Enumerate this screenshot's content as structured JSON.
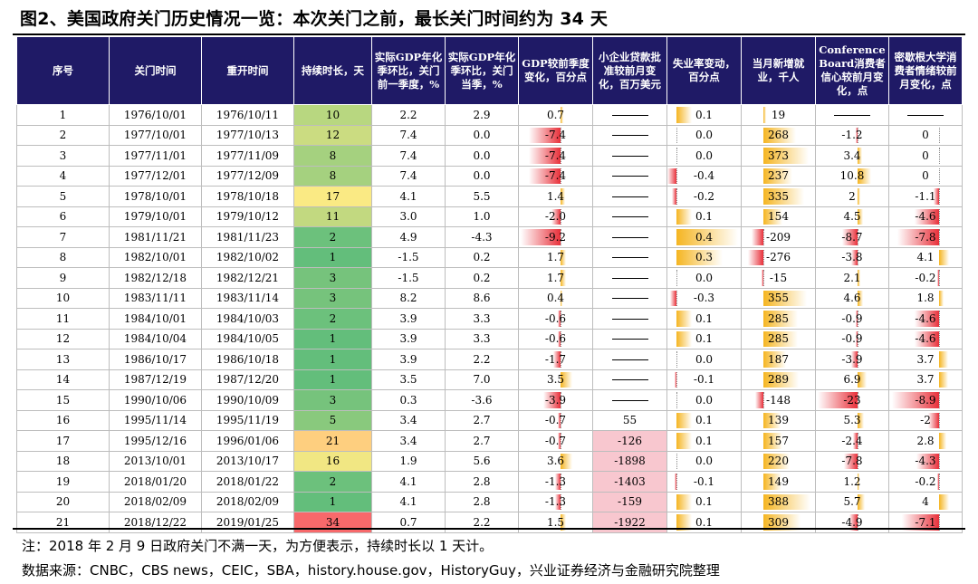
{
  "title": "图2、美国政府关门历史情况一览：本次关门之前，最长关门时间约为 34 天",
  "headers": [
    "序号",
    "关门时间",
    "重开时间",
    "持续时长，天",
    "实际GDP年化季环比，关门前一季度，%",
    "实际GDP年化季环比，关门当季，%",
    "GDP较前季度变化，百分点",
    "小企业贷款批准较前月变化，百万美元",
    "失业率变动，百分点",
    "当月新增就业，千人",
    "Conference Board消费者信心较前月变化，点",
    "密歇根大学消费者情绪较前月变化，点"
  ],
  "rows": [
    {
      "no": "1",
      "close": "1976/10/01",
      "reopen": "1976/10/11",
      "dur": "10",
      "gdp_prev": "2.2",
      "gdp_curr": "2.9",
      "gdp_chg": "0.7",
      "sba": "",
      "unemp": "0.1",
      "jobs": "19",
      "cb": "",
      "mich": ""
    },
    {
      "no": "2",
      "close": "1977/10/01",
      "reopen": "1977/10/13",
      "dur": "12",
      "gdp_prev": "7.4",
      "gdp_curr": "0.0",
      "gdp_chg": "-7.4",
      "sba": "",
      "unemp": "0.0",
      "jobs": "268",
      "cb": "-1.2",
      "mich": "0"
    },
    {
      "no": "3",
      "close": "1977/11/01",
      "reopen": "1977/11/09",
      "dur": "8",
      "gdp_prev": "7.4",
      "gdp_curr": "0.0",
      "gdp_chg": "-7.4",
      "sba": "",
      "unemp": "0.0",
      "jobs": "373",
      "cb": "3.4",
      "mich": "0"
    },
    {
      "no": "4",
      "close": "1977/12/01",
      "reopen": "1977/12/09",
      "dur": "8",
      "gdp_prev": "7.4",
      "gdp_curr": "0.0",
      "gdp_chg": "-7.4",
      "sba": "",
      "unemp": "-0.4",
      "jobs": "237",
      "cb": "10.8",
      "mich": "0"
    },
    {
      "no": "5",
      "close": "1978/10/01",
      "reopen": "1978/10/18",
      "dur": "17",
      "gdp_prev": "4.1",
      "gdp_curr": "5.5",
      "gdp_chg": "1.4",
      "sba": "",
      "unemp": "-0.2",
      "jobs": "335",
      "cb": "2",
      "mich": "-1.1"
    },
    {
      "no": "6",
      "close": "1979/10/01",
      "reopen": "1979/10/12",
      "dur": "11",
      "gdp_prev": "3.0",
      "gdp_curr": "1.0",
      "gdp_chg": "-2.0",
      "sba": "",
      "unemp": "0.1",
      "jobs": "154",
      "cb": "4.5",
      "mich": "-4.6"
    },
    {
      "no": "7",
      "close": "1981/11/21",
      "reopen": "1981/11/23",
      "dur": "2",
      "gdp_prev": "4.9",
      "gdp_curr": "-4.3",
      "gdp_chg": "-9.2",
      "sba": "",
      "unemp": "0.4",
      "jobs": "-209",
      "cb": "-8.7",
      "mich": "-7.8"
    },
    {
      "no": "8",
      "close": "1982/10/01",
      "reopen": "1982/10/02",
      "dur": "1",
      "gdp_prev": "-1.5",
      "gdp_curr": "0.2",
      "gdp_chg": "1.7",
      "sba": "",
      "unemp": "0.3",
      "jobs": "-276",
      "cb": "-3.8",
      "mich": "4.1"
    },
    {
      "no": "9",
      "close": "1982/12/18",
      "reopen": "1982/12/21",
      "dur": "3",
      "gdp_prev": "-1.5",
      "gdp_curr": "0.2",
      "gdp_chg": "1.7",
      "sba": "",
      "unemp": "0.0",
      "jobs": "-15",
      "cb": "2.1",
      "mich": "-0.2"
    },
    {
      "no": "10",
      "close": "1983/11/11",
      "reopen": "1983/11/14",
      "dur": "3",
      "gdp_prev": "8.2",
      "gdp_curr": "8.6",
      "gdp_chg": "0.4",
      "sba": "",
      "unemp": "-0.3",
      "jobs": "355",
      "cb": "4.6",
      "mich": "1.8"
    },
    {
      "no": "11",
      "close": "1984/10/01",
      "reopen": "1984/10/03",
      "dur": "2",
      "gdp_prev": "3.9",
      "gdp_curr": "3.3",
      "gdp_chg": "-0.6",
      "sba": "",
      "unemp": "0.1",
      "jobs": "285",
      "cb": "-0.9",
      "mich": "-4.6"
    },
    {
      "no": "12",
      "close": "1984/10/04",
      "reopen": "1984/10/05",
      "dur": "1",
      "gdp_prev": "3.9",
      "gdp_curr": "3.3",
      "gdp_chg": "-0.6",
      "sba": "",
      "unemp": "0.1",
      "jobs": "285",
      "cb": "-0.9",
      "mich": "-4.6"
    },
    {
      "no": "13",
      "close": "1986/10/17",
      "reopen": "1986/10/18",
      "dur": "1",
      "gdp_prev": "3.9",
      "gdp_curr": "2.2",
      "gdp_chg": "-1.7",
      "sba": "",
      "unemp": "0.0",
      "jobs": "187",
      "cb": "-3.9",
      "mich": "3.7"
    },
    {
      "no": "14",
      "close": "1987/12/19",
      "reopen": "1987/12/20",
      "dur": "1",
      "gdp_prev": "3.5",
      "gdp_curr": "7.0",
      "gdp_chg": "3.5",
      "sba": "",
      "unemp": "-0.1",
      "jobs": "289",
      "cb": "6.9",
      "mich": "3.7"
    },
    {
      "no": "15",
      "close": "1990/10/06",
      "reopen": "1990/10/09",
      "dur": "3",
      "gdp_prev": "0.3",
      "gdp_curr": "-3.6",
      "gdp_chg": "-3.9",
      "sba": "",
      "unemp": "0.0",
      "jobs": "-148",
      "cb": "-23",
      "mich": "-8.9"
    },
    {
      "no": "16",
      "close": "1995/11/14",
      "reopen": "1995/11/19",
      "dur": "5",
      "gdp_prev": "3.4",
      "gdp_curr": "2.7",
      "gdp_chg": "-0.7",
      "sba": "55",
      "unemp": "0.1",
      "jobs": "139",
      "cb": "5.3",
      "mich": "-2"
    },
    {
      "no": "17",
      "close": "1995/12/16",
      "reopen": "1996/01/06",
      "dur": "21",
      "gdp_prev": "3.4",
      "gdp_curr": "2.7",
      "gdp_chg": "-0.7",
      "sba": "-126",
      "unemp": "0.1",
      "jobs": "157",
      "cb": "-2.4",
      "mich": "2.8"
    },
    {
      "no": "18",
      "close": "2013/10/01",
      "reopen": "2013/10/17",
      "dur": "16",
      "gdp_prev": "1.9",
      "gdp_curr": "5.6",
      "gdp_chg": "3.6",
      "sba": "-1898",
      "unemp": "0.0",
      "jobs": "220",
      "cb": "-7.8",
      "mich": "-4.3"
    },
    {
      "no": "19",
      "close": "2018/01/20",
      "reopen": "2018/01/22",
      "dur": "2",
      "gdp_prev": "4.1",
      "gdp_curr": "2.8",
      "gdp_chg": "-1.3",
      "sba": "-1403",
      "unemp": "-0.1",
      "jobs": "149",
      "cb": "1.2",
      "mich": "-0.2"
    },
    {
      "no": "20",
      "close": "2018/02/09",
      "reopen": "2018/02/09",
      "dur": "1",
      "gdp_prev": "4.1",
      "gdp_curr": "2.8",
      "gdp_chg": "-1.3",
      "sba": "-159",
      "unemp": "0.1",
      "jobs": "388",
      "cb": "5.7",
      "mich": "4"
    },
    {
      "no": "21",
      "close": "2018/12/22",
      "reopen": "2019/01/25",
      "dur": "34",
      "gdp_prev": "0.7",
      "gdp_curr": "2.2",
      "gdp_chg": "1.5",
      "sba": "-1922",
      "unemp": "0.1",
      "jobs": "309",
      "cb": "-4.9",
      "mich": "-7.1"
    }
  ],
  "note": "注：2018 年 2 月 9 日政府关门不满一天，为方便表示，持续时长以 1 天计。",
  "source": "数据来源：CNBC，CBS news，CEIC，SBA，history.house.gov，HistoryGuy，兴业证券经济与金融研究院整理",
  "colors": {
    "header_bg": "#1f1a66",
    "neg_bar": "#e8303a",
    "pos_bar": "#f5b521",
    "sba_neg_bg": "#f8c7cf",
    "heat_low": "#63be7b",
    "heat_mid": "#ffeb84",
    "heat_high": "#f8696b"
  }
}
